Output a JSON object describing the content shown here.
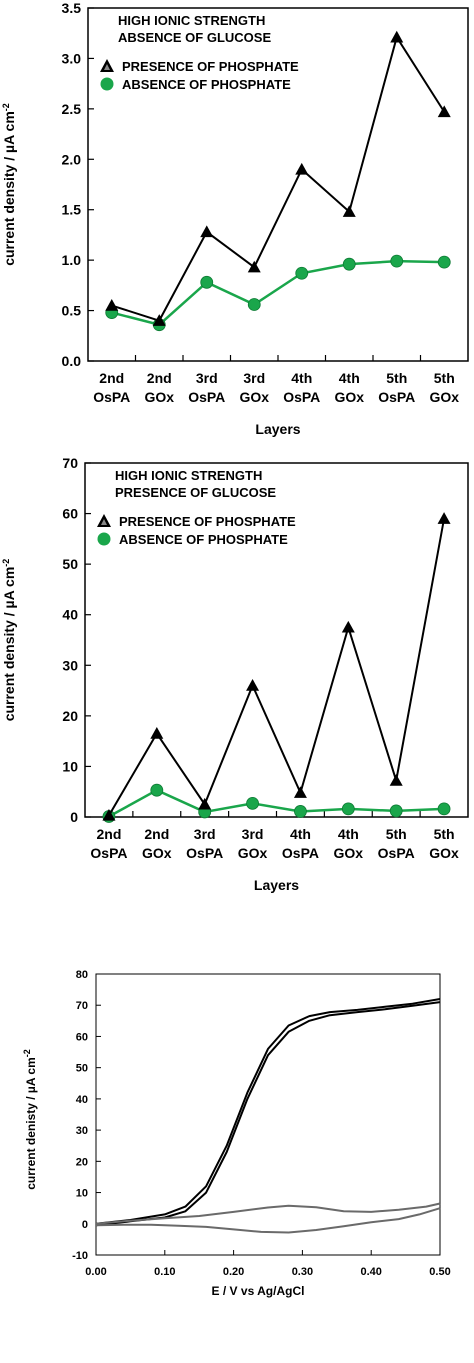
{
  "chart_data": [
    {
      "type": "line",
      "annotation": [
        "HIGH IONIC STRENGTH",
        "ABSENCE OF GLUCOSE"
      ],
      "xlabel": "Layers",
      "ylabel": "current density / µA cm⁻²",
      "ylim": [
        0,
        3.5
      ],
      "yticks": [
        "0.0",
        "0.5",
        "1.0",
        "1.5",
        "2.0",
        "2.5",
        "3.0",
        "3.5"
      ],
      "categories": [
        [
          "2nd",
          "OsPA"
        ],
        [
          "2nd",
          "GOx"
        ],
        [
          "3rd",
          "OsPA"
        ],
        [
          "3rd",
          "GOx"
        ],
        [
          "4th",
          "OsPA"
        ],
        [
          "4th",
          "GOx"
        ],
        [
          "5th",
          "OsPA"
        ],
        [
          "5th",
          "GOx"
        ]
      ],
      "legend_position": "top-left",
      "series": [
        {
          "name": "PRESENCE OF PHOSPHATE",
          "marker": "triangle",
          "color": "#000000",
          "values": [
            0.55,
            0.4,
            1.28,
            0.93,
            1.9,
            1.48,
            3.21,
            2.47
          ]
        },
        {
          "name": "ABSENCE OF PHOSPHATE",
          "marker": "circle",
          "color": "#1aa64b",
          "values": [
            0.48,
            0.36,
            0.78,
            0.56,
            0.87,
            0.96,
            0.99,
            0.98
          ]
        }
      ]
    },
    {
      "type": "line",
      "annotation": [
        "HIGH IONIC STRENGTH",
        "PRESENCE OF GLUCOSE"
      ],
      "xlabel": "Layers",
      "ylabel": "current density / µA cm⁻²",
      "ylim": [
        0,
        70
      ],
      "yticks": [
        "0",
        "10",
        "20",
        "30",
        "40",
        "50",
        "60",
        "70"
      ],
      "categories": [
        [
          "2nd",
          "OsPA"
        ],
        [
          "2nd",
          "GOx"
        ],
        [
          "3rd",
          "OsPA"
        ],
        [
          "3rd",
          "GOx"
        ],
        [
          "4th",
          "OsPA"
        ],
        [
          "4th",
          "GOx"
        ],
        [
          "5th",
          "OsPA"
        ],
        [
          "5th",
          "GOx"
        ]
      ],
      "legend_position": "top-left",
      "series": [
        {
          "name": "PRESENCE OF PHOSPHATE",
          "marker": "triangle",
          "color": "#000000",
          "values": [
            0.3,
            16.5,
            2.5,
            26.0,
            4.8,
            37.5,
            7.2,
            59.0
          ]
        },
        {
          "name": "ABSENCE OF PHOSPHATE",
          "marker": "circle",
          "color": "#1aa64b",
          "values": [
            0.1,
            5.3,
            1.0,
            2.7,
            1.1,
            1.6,
            1.2,
            1.6
          ]
        }
      ]
    },
    {
      "type": "line",
      "xlabel": "E / V vs Ag/AgCl",
      "ylabel": "current denisty / µA cm⁻²",
      "xlim": [
        0.0,
        0.5
      ],
      "ylim": [
        -10,
        80
      ],
      "xticks": [
        "0.00",
        "0.10",
        "0.20",
        "0.30",
        "0.40",
        "0.50"
      ],
      "yticks": [
        "-10",
        "0",
        "10",
        "20",
        "30",
        "40",
        "50",
        "60",
        "70",
        "80"
      ],
      "series": [
        {
          "color": "#000000",
          "x": [
            0.0,
            0.05,
            0.1,
            0.13,
            0.16,
            0.19,
            0.22,
            0.25,
            0.28,
            0.31,
            0.34,
            0.38,
            0.42,
            0.46,
            0.5
          ],
          "y": [
            0.0,
            1.2,
            3.0,
            5.5,
            12.0,
            25.0,
            42.0,
            56.0,
            63.5,
            66.5,
            67.8,
            68.5,
            69.5,
            70.5,
            72.0
          ]
        },
        {
          "color": "#000000",
          "x": [
            0.5,
            0.46,
            0.42,
            0.38,
            0.34,
            0.31,
            0.28,
            0.25,
            0.22,
            0.19,
            0.16,
            0.13,
            0.1,
            0.05,
            0.0
          ],
          "y": [
            71.0,
            69.8,
            68.7,
            67.8,
            66.8,
            65.0,
            61.5,
            54.0,
            40.0,
            23.0,
            10.0,
            4.0,
            2.0,
            0.8,
            -0.5
          ]
        },
        {
          "color": "#6a6a6a",
          "x": [
            0.0,
            0.05,
            0.1,
            0.15,
            0.2,
            0.25,
            0.28,
            0.32,
            0.36,
            0.4,
            0.44,
            0.48,
            0.5
          ],
          "y": [
            0.0,
            1.0,
            1.8,
            2.5,
            3.8,
            5.2,
            5.8,
            5.3,
            4.0,
            3.8,
            4.5,
            5.5,
            6.5
          ]
        },
        {
          "color": "#6a6a6a",
          "x": [
            0.5,
            0.47,
            0.44,
            0.4,
            0.36,
            0.32,
            0.28,
            0.24,
            0.2,
            0.16,
            0.12,
            0.08,
            0.04,
            0.0
          ],
          "y": [
            5.0,
            3.0,
            1.5,
            0.5,
            -0.8,
            -2.0,
            -2.8,
            -2.6,
            -1.8,
            -1.0,
            -0.6,
            -0.3,
            -0.3,
            -0.5
          ]
        }
      ]
    }
  ]
}
